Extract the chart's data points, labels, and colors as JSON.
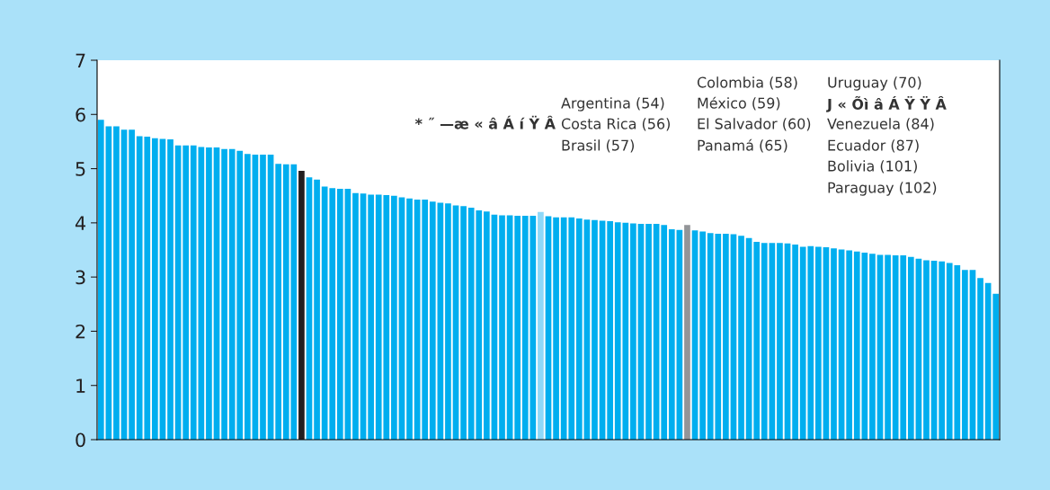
{
  "chart_data": {
    "type": "bar",
    "categories": [
      null,
      null,
      null,
      null,
      null,
      null,
      null,
      null,
      null,
      null,
      null,
      null,
      null,
      null,
      null,
      null,
      null,
      null,
      null,
      null,
      null,
      null,
      null,
      null,
      null,
      null,
      null,
      null,
      null,
      null,
      null,
      null,
      null,
      null,
      null,
      null,
      null,
      null,
      null,
      null,
      null,
      null,
      null,
      null,
      null,
      null,
      null,
      null,
      null,
      null,
      null,
      null,
      null,
      null,
      null,
      null,
      null,
      null,
      null,
      null,
      null,
      null,
      null,
      null,
      null,
      null,
      null,
      null,
      null,
      null,
      null,
      null,
      null,
      null,
      null,
      null,
      null,
      null,
      null,
      null,
      null,
      null,
      null,
      null,
      null,
      null,
      null,
      null,
      null,
      null,
      null,
      null,
      null,
      null,
      null,
      null,
      null,
      null,
      null,
      null,
      null,
      null,
      null,
      null,
      null,
      null,
      null,
      null,
      null,
      null,
      null,
      null,
      null,
      null,
      null,
      null,
      null
    ],
    "values": [
      5.9,
      5.78,
      5.78,
      5.72,
      5.72,
      5.6,
      5.59,
      5.56,
      5.55,
      5.54,
      5.43,
      5.43,
      5.43,
      5.4,
      5.39,
      5.39,
      5.36,
      5.36,
      5.33,
      5.27,
      5.26,
      5.26,
      5.26,
      5.09,
      5.08,
      5.08,
      4.96,
      4.84,
      4.8,
      4.67,
      4.64,
      4.63,
      4.63,
      4.55,
      4.54,
      4.52,
      4.52,
      4.51,
      4.5,
      4.47,
      4.45,
      4.43,
      4.43,
      4.39,
      4.37,
      4.36,
      4.32,
      4.31,
      4.28,
      4.23,
      4.21,
      4.15,
      4.14,
      4.14,
      4.13,
      4.13,
      4.13,
      4.2,
      4.12,
      4.1,
      4.1,
      4.1,
      4.08,
      4.06,
      4.05,
      4.04,
      4.03,
      4.01,
      4.0,
      3.99,
      3.98,
      3.98,
      3.98,
      3.96,
      3.88,
      3.87,
      3.96,
      3.86,
      3.84,
      3.81,
      3.8,
      3.8,
      3.79,
      3.76,
      3.72,
      3.65,
      3.63,
      3.63,
      3.63,
      3.62,
      3.6,
      3.56,
      3.57,
      3.56,
      3.55,
      3.53,
      3.51,
      3.49,
      3.47,
      3.45,
      3.43,
      3.41,
      3.41,
      3.4,
      3.4,
      3.37,
      3.34,
      3.31,
      3.3,
      3.29,
      3.26,
      3.22,
      3.13,
      3.13,
      2.98,
      2.89,
      2.69
    ],
    "colors": [
      "#00aeef",
      "#00aeef",
      "#00aeef",
      "#00aeef",
      "#00aeef",
      "#00aeef",
      "#00aeef",
      "#00aeef",
      "#00aeef",
      "#00aeef",
      "#00aeef",
      "#00aeef",
      "#00aeef",
      "#00aeef",
      "#00aeef",
      "#00aeef",
      "#00aeef",
      "#00aeef",
      "#00aeef",
      "#00aeef",
      "#00aeef",
      "#00aeef",
      "#00aeef",
      "#00aeef",
      "#00aeef",
      "#00aeef",
      "#231f20",
      "#00aeef",
      "#00aeef",
      "#00aeef",
      "#00aeef",
      "#00aeef",
      "#00aeef",
      "#00aeef",
      "#00aeef",
      "#00aeef",
      "#00aeef",
      "#00aeef",
      "#00aeef",
      "#00aeef",
      "#00aeef",
      "#00aeef",
      "#00aeef",
      "#00aeef",
      "#00aeef",
      "#00aeef",
      "#00aeef",
      "#00aeef",
      "#00aeef",
      "#00aeef",
      "#00aeef",
      "#00aeef",
      "#00aeef",
      "#00aeef",
      "#00aeef",
      "#00aeef",
      "#00aeef",
      "#8ed8f8",
      "#00aeef",
      "#00aeef",
      "#00aeef",
      "#00aeef",
      "#00aeef",
      "#00aeef",
      "#00aeef",
      "#00aeef",
      "#00aeef",
      "#00aeef",
      "#00aeef",
      "#00aeef",
      "#00aeef",
      "#00aeef",
      "#00aeef",
      "#00aeef",
      "#00aeef",
      "#00aeef",
      "#939598",
      "#00aeef",
      "#00aeef",
      "#00aeef",
      "#00aeef",
      "#00aeef",
      "#00aeef",
      "#00aeef",
      "#00aeef",
      "#00aeef",
      "#00aeef",
      "#00aeef",
      "#00aeef",
      "#00aeef",
      "#00aeef",
      "#00aeef",
      "#00aeef",
      "#00aeef",
      "#00aeef",
      "#00aeef",
      "#00aeef",
      "#00aeef",
      "#00aeef",
      "#00aeef",
      "#00aeef",
      "#00aeef",
      "#00aeef",
      "#00aeef",
      "#00aeef",
      "#00aeef",
      "#00aeef",
      "#00aeef",
      "#00aeef",
      "#00aeef",
      "#00aeef",
      "#00aeef",
      "#00aeef",
      "#00aeef",
      "#00aeef",
      "#00aeef",
      "#00aeef"
    ],
    "ylim": [
      0,
      7
    ],
    "yticks": [
      0,
      1,
      2,
      3,
      4,
      5,
      6,
      7
    ],
    "annotations": [
      "Argentina (54)",
      "* ˝ —æ « â Á í Ÿ Â",
      "Costa Rica (56)",
      "Brasil (57)",
      "Colombia (58)",
      "México (59)",
      "El Salvador (60)",
      "Panamá (65)",
      "Uruguay (70)",
      "J « Õì â Á Ÿ Ÿ Â",
      "Venezuela (84)",
      "Ecuador (87)",
      "Bolivia (101)",
      "Paraguay (102)"
    ]
  }
}
